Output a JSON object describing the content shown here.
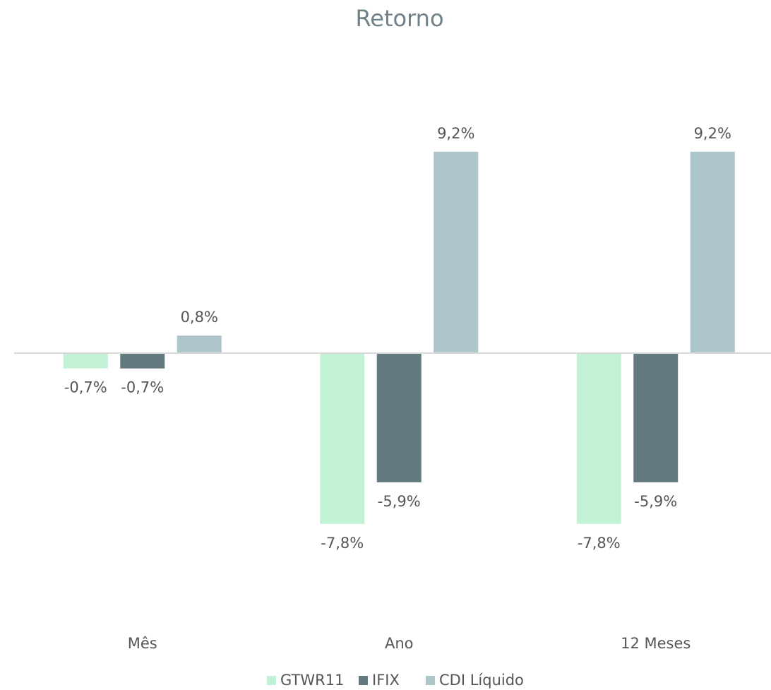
{
  "chart_data": {
    "type": "bar",
    "title": "Retorno",
    "categories": [
      "Mês",
      "Ano",
      "12 Meses"
    ],
    "series": [
      {
        "name": "GTWR11",
        "color": "#c2f2d6",
        "values": [
          -0.7,
          -7.8,
          -7.8
        ],
        "value_labels": [
          "-0,7%",
          "-7,8%",
          "-7,8%"
        ]
      },
      {
        "name": "IFIX",
        "color": "#647880",
        "values": [
          -0.7,
          -5.9,
          -5.9
        ],
        "value_labels": [
          "-0,7%",
          "-5,9%",
          "-5,9%"
        ]
      },
      {
        "name": "CDI Líquido",
        "color": "#adc6cc",
        "values": [
          0.8,
          9.2,
          9.2
        ],
        "value_labels": [
          "0,8%",
          "9,2%",
          "9,2%"
        ]
      }
    ],
    "ylim": [
      -10,
      12
    ]
  }
}
